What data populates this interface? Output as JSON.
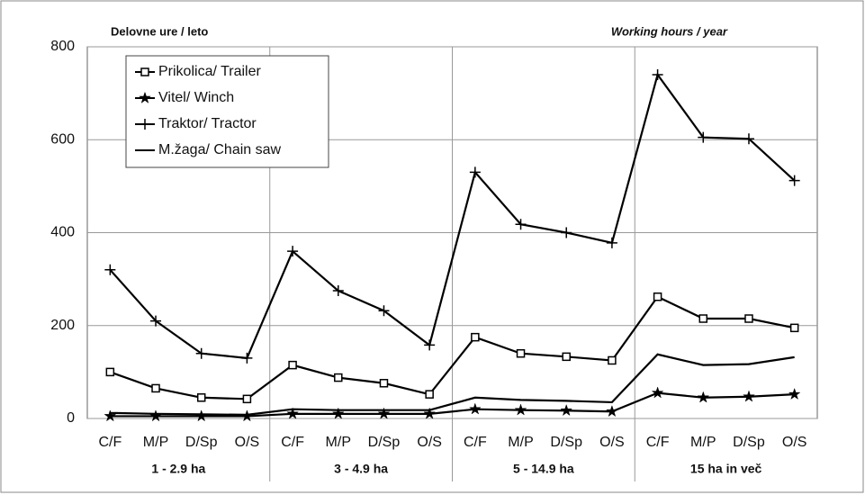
{
  "chart_data": {
    "type": "line",
    "y_label_left": "Delovne ure / leto",
    "y_label_right": "Working hours / year",
    "categories": [
      "C/F",
      "M/P",
      "D/Sp",
      "O/S",
      "C/F",
      "M/P",
      "D/Sp",
      "O/S",
      "C/F",
      "M/P",
      "D/Sp",
      "O/S",
      "C/F",
      "M/P",
      "D/Sp",
      "O/S"
    ],
    "groups": [
      "1 - 2.9 ha",
      "3 - 4.9 ha",
      "5 - 14.9 ha",
      "15 ha in več"
    ],
    "series": [
      {
        "name": "Prikolica/ Trailer",
        "color": "#000000",
        "marker": "square",
        "values": [
          100,
          65,
          45,
          42,
          115,
          88,
          76,
          52,
          175,
          140,
          133,
          125,
          262,
          215,
          215,
          195
        ]
      },
      {
        "name": "Vitel/ Winch",
        "color": "#000000",
        "marker": "star",
        "values": [
          5,
          5,
          5,
          5,
          10,
          10,
          10,
          10,
          20,
          18,
          17,
          15,
          55,
          45,
          47,
          52
        ]
      },
      {
        "name": "Traktor/ Tractor",
        "color": "#000000",
        "marker": "plus",
        "values": [
          320,
          210,
          140,
          130,
          360,
          275,
          232,
          158,
          530,
          418,
          400,
          378,
          740,
          605,
          602,
          512
        ]
      },
      {
        "name": "M.žaga/ Chain saw",
        "color": "#000000",
        "marker": "none",
        "values": [
          12,
          10,
          9,
          8,
          20,
          18,
          18,
          18,
          45,
          40,
          38,
          35,
          138,
          115,
          117,
          132
        ]
      }
    ],
    "ylim": [
      0,
      800
    ],
    "yticks": [
      0,
      200,
      400,
      600,
      800
    ],
    "grid": true
  }
}
